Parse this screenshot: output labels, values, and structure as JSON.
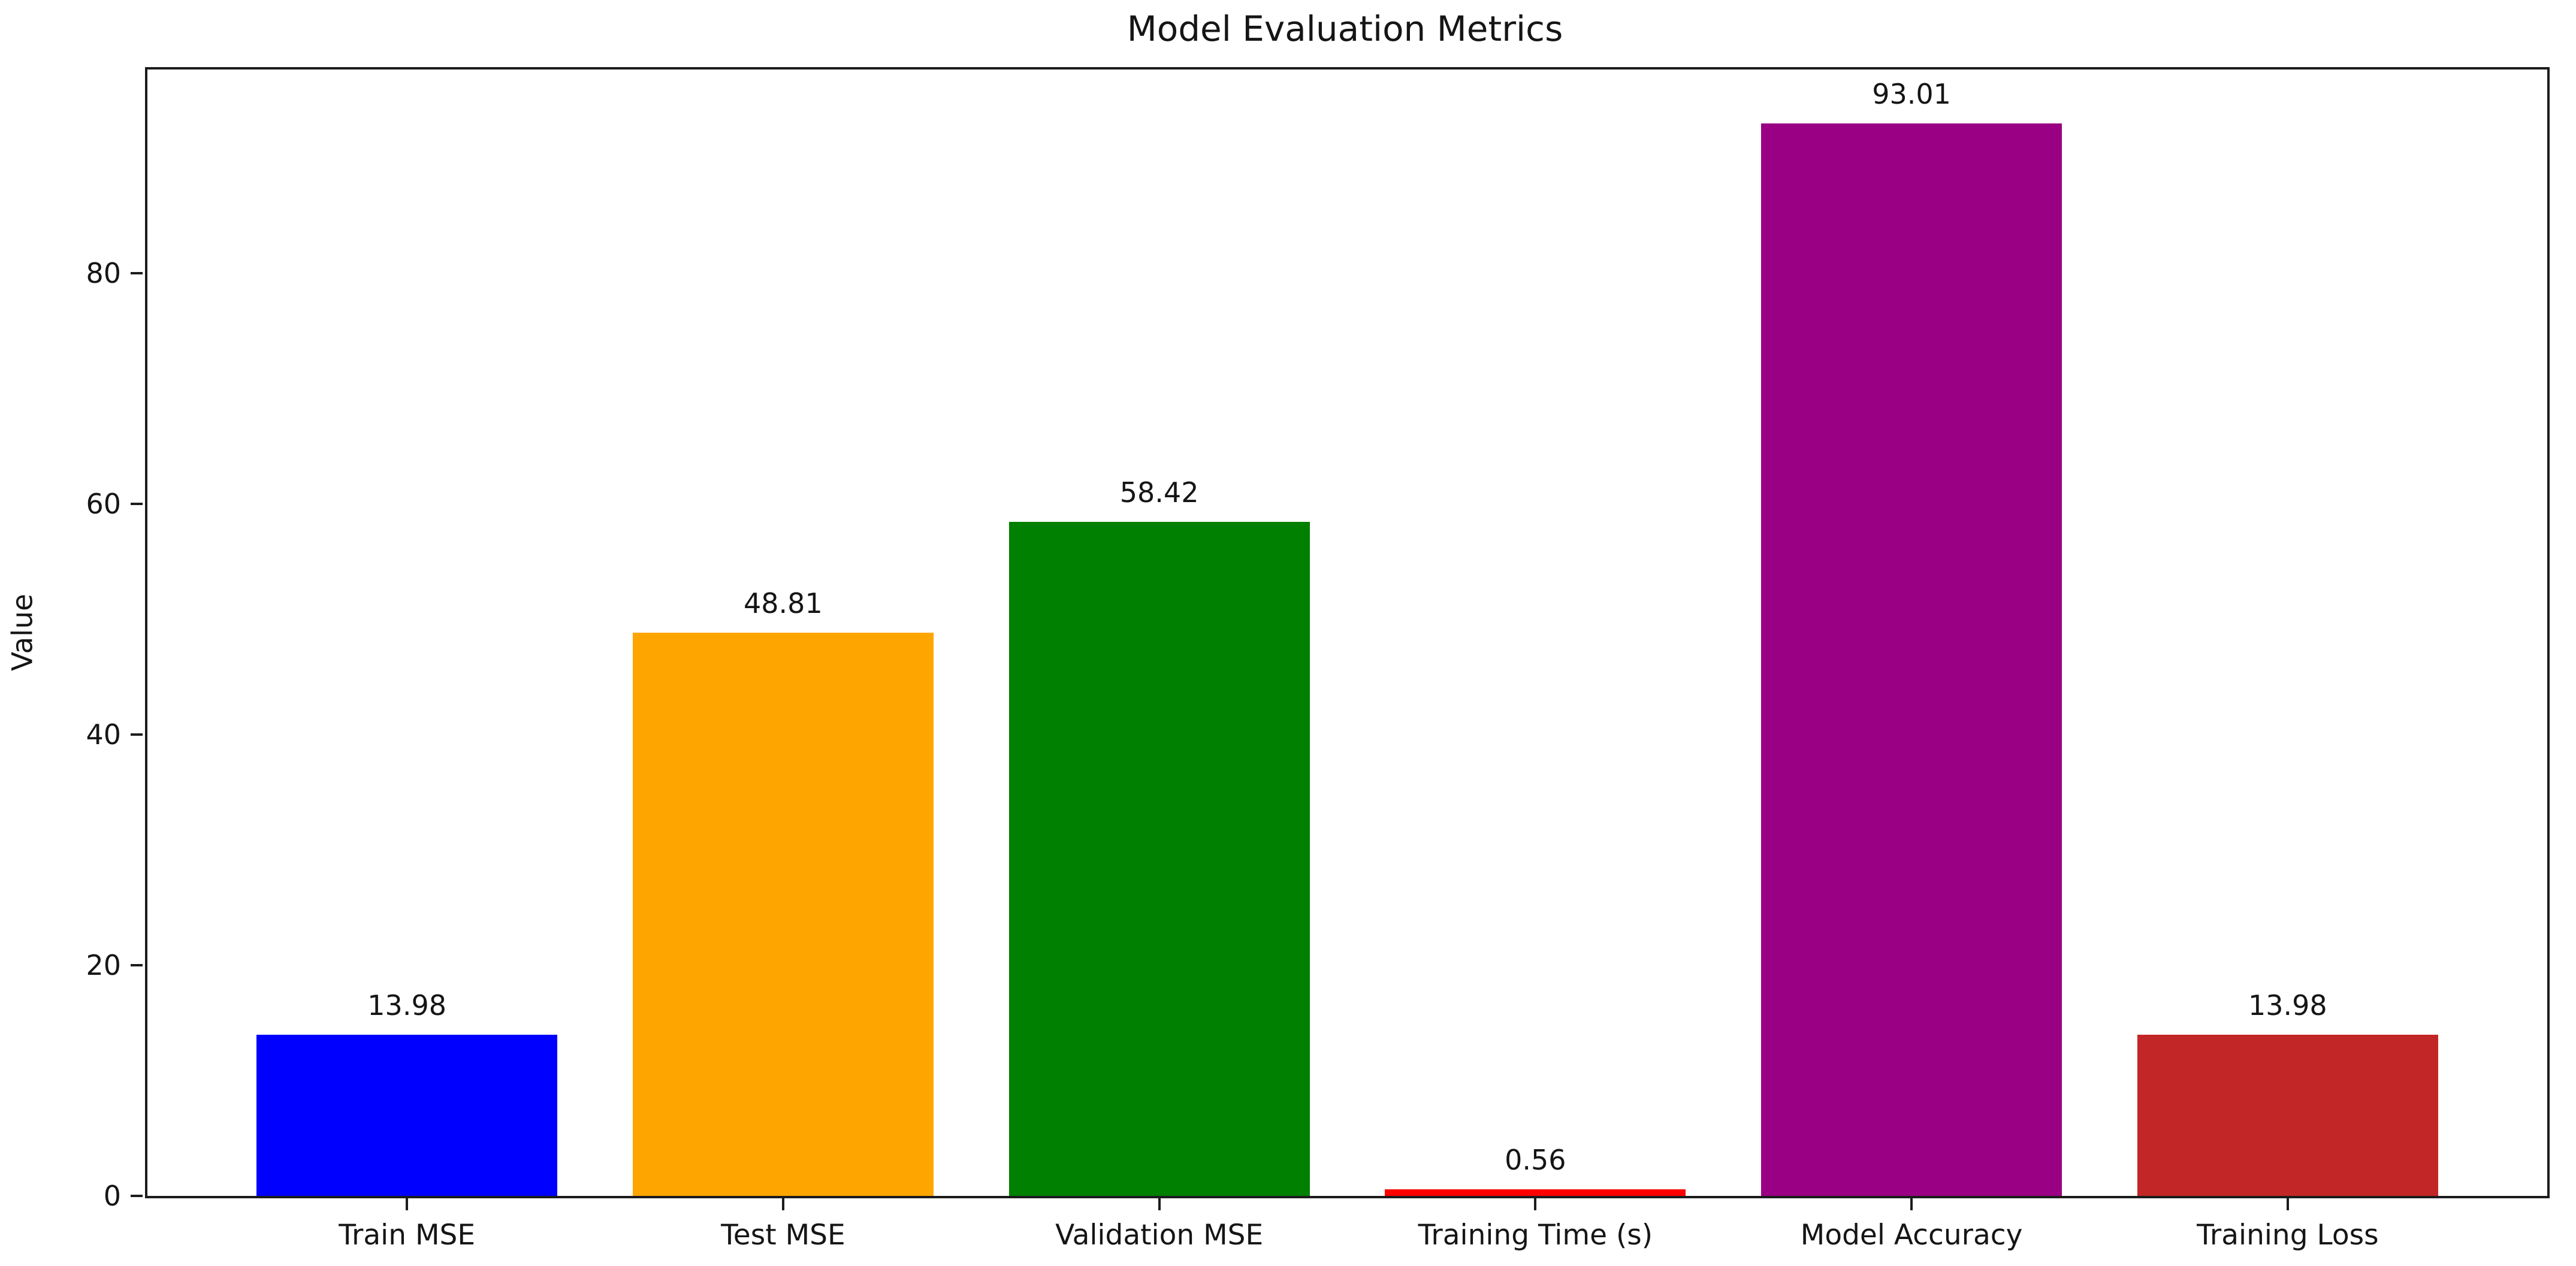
{
  "chart_data": {
    "type": "bar",
    "title": "Model Evaluation Metrics",
    "xlabel": "",
    "ylabel": "Value",
    "categories": [
      "Train MSE",
      "Test MSE",
      "Validation MSE",
      "Training Time (s)",
      "Model Accuracy",
      "Training Loss"
    ],
    "values": [
      13.98,
      48.81,
      58.42,
      0.56,
      93.01,
      13.98
    ],
    "value_labels": [
      "13.98",
      "48.81",
      "58.42",
      "0.56",
      "93.01",
      "13.98"
    ],
    "bar_colors": [
      "#0000ff",
      "#ffa500",
      "#008000",
      "#ff0000",
      "#990083",
      "#c22626"
    ],
    "yticks": [
      0,
      20,
      40,
      60,
      80
    ],
    "ytick_labels": [
      "0",
      "20",
      "40",
      "60",
      "80"
    ],
    "ylim": [
      0,
      97.66
    ],
    "grid": false,
    "legend_position": "none",
    "background_color": "#ffffff",
    "axis_color": "#1c1c1c",
    "text_color": "#151515"
  }
}
